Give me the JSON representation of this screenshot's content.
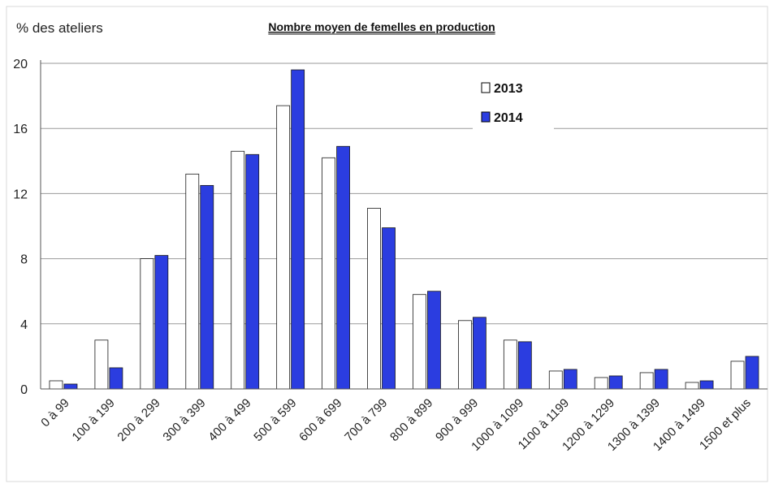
{
  "chart_data": {
    "type": "bar",
    "title": "Nombre moyen de femelles en production",
    "ylabel": "% des ateliers",
    "xlabel": "",
    "ylim": [
      0,
      20
    ],
    "yticks": [
      0,
      4,
      8,
      12,
      16,
      20
    ],
    "grid": true,
    "legend_position": "top-right",
    "categories": [
      "0 à 99",
      "100 à 199",
      "200 à 299",
      "300 à 399",
      "400 à 499",
      "500 à 599",
      "600 à 699",
      "700 à 799",
      "800 à 899",
      "900 à 999",
      "1000 à 1099",
      "1100 à 1199",
      "1200 à 1299",
      "1300 à 1399",
      "1400 à 1499",
      "1500 et plus"
    ],
    "series": [
      {
        "name": "2013",
        "color": "#ffffff",
        "values": [
          0.5,
          3.0,
          8.0,
          13.2,
          14.6,
          17.4,
          14.2,
          11.1,
          5.8,
          4.2,
          3.0,
          1.1,
          0.7,
          1.0,
          0.4,
          1.7
        ]
      },
      {
        "name": "2014",
        "color": "#2b3de0",
        "values": [
          0.3,
          1.3,
          8.2,
          12.5,
          14.4,
          19.6,
          14.9,
          9.9,
          6.0,
          4.4,
          2.9,
          1.2,
          0.8,
          1.2,
          0.5,
          2.0
        ]
      }
    ]
  }
}
